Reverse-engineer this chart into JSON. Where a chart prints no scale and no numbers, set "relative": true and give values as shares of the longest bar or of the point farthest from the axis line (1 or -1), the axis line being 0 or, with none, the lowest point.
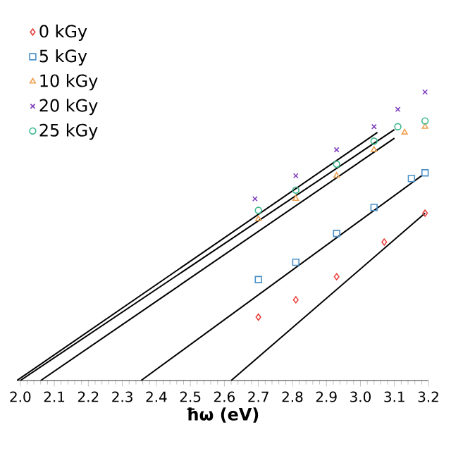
{
  "chart_data": {
    "type": "scatter",
    "xlabel": "ħω (eV)",
    "relative": true,
    "legend": "top left",
    "tick_labels": "x",
    "xlim": [
      1.99,
      3.2
    ],
    "xticks": [
      {
        "value": 2,
        "label": "2.0"
      },
      2.1,
      2.2,
      2.3,
      2.4,
      2.5,
      2.6,
      2.7,
      2.8,
      2.9,
      {
        "value": 3,
        "label": "3.0"
      },
      3.1,
      3.2
    ],
    "series": [
      {
        "name": "0 kGy",
        "color": "#e8413c",
        "marker": "diamond",
        "x": [
          2.7,
          2.81,
          2.93,
          3.07,
          3.19
        ],
        "values": [
          0.22,
          0.28,
          0.36,
          0.48,
          0.58
        ]
      },
      {
        "name": "5 kGy",
        "color": "#4a90c8",
        "marker": "square",
        "x": [
          2.7,
          2.81,
          2.93,
          3.04,
          3.15,
          3.19
        ],
        "values": [
          0.35,
          0.41,
          0.51,
          0.6,
          0.7,
          0.72
        ]
      },
      {
        "name": "10 kGy",
        "color": "#f0a050",
        "marker": "triangle",
        "x": [
          2.7,
          2.81,
          2.93,
          3.04,
          3.13,
          3.19
        ],
        "values": [
          0.56,
          0.63,
          0.71,
          0.8,
          0.86,
          0.88
        ]
      },
      {
        "name": "20 kGy",
        "color": "#7f3fbf",
        "marker": "cross",
        "x": [
          2.69,
          2.81,
          2.93,
          3.04,
          3.11,
          3.19
        ],
        "values": [
          0.63,
          0.71,
          0.8,
          0.88,
          0.94,
          1.0
        ]
      },
      {
        "name": "25 kGy",
        "color": "#3cb88a",
        "marker": "circle",
        "x": [
          2.7,
          2.81,
          2.93,
          3.04,
          3.11,
          3.19
        ],
        "values": [
          0.59,
          0.66,
          0.75,
          0.83,
          0.88,
          0.9
        ]
      },
      {
        "type": "line",
        "color": "#000000",
        "marker": "none",
        "x": [
          2.62,
          3.19
        ],
        "values": [
          0,
          0.58
        ]
      },
      {
        "type": "line",
        "color": "#000000",
        "marker": "none",
        "x": [
          2.355,
          3.18
        ],
        "values": [
          0,
          0.71
        ]
      },
      {
        "type": "line",
        "color": "#000000",
        "marker": "none",
        "x": [
          2.06,
          3.1
        ],
        "values": [
          0,
          0.84
        ]
      },
      {
        "type": "line",
        "color": "#000000",
        "marker": "none",
        "x": [
          1.99,
          3.05
        ],
        "values": [
          0,
          0.86
        ]
      },
      {
        "type": "line",
        "color": "#000000",
        "marker": "none",
        "x": [
          2.0,
          3.1
        ],
        "values": [
          0,
          0.87
        ]
      }
    ]
  }
}
